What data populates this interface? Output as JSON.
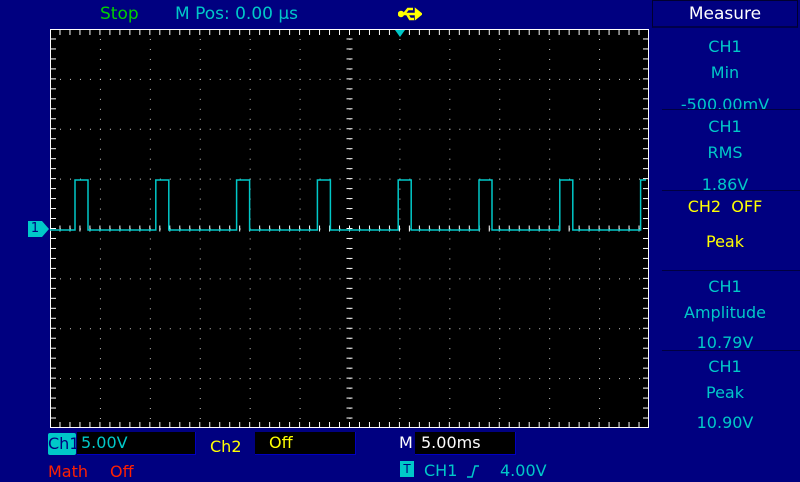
{
  "status": {
    "run_state": "Stop",
    "m_pos": "M Pos: 0.00 µs",
    "usb_icon": "usb-icon"
  },
  "measure": {
    "title": "Measure",
    "items": [
      {
        "source": "CH1",
        "type": "Min",
        "value": "-500.00mV"
      },
      {
        "source": "CH1",
        "type": "RMS",
        "value": "1.86V"
      },
      {
        "source": "CH2  OFF",
        "type": "Peak",
        "value": ""
      },
      {
        "source": "CH1",
        "type": "Amplitude",
        "value": "10.79V"
      },
      {
        "source": "CH1",
        "type": "Peak",
        "value": "10.90V"
      }
    ]
  },
  "channels": {
    "ch1_label": "Ch1",
    "ch1_scale": "5.00V",
    "ch2_label": "Ch2",
    "ch2_scale": "Off",
    "math_label": "Math",
    "math_state": "Off",
    "ch1_marker": "1"
  },
  "timebase": {
    "label": "M",
    "value": "5.00ms"
  },
  "trigger": {
    "icon": "T",
    "source": "CH1",
    "slope_icon": "rising-edge-icon",
    "level": "4.00V"
  },
  "colors": {
    "ch1": "#00c8c8",
    "ch2": "#ffff00",
    "math": "#ff2000",
    "status": "#00d000",
    "background": "#000080"
  }
}
